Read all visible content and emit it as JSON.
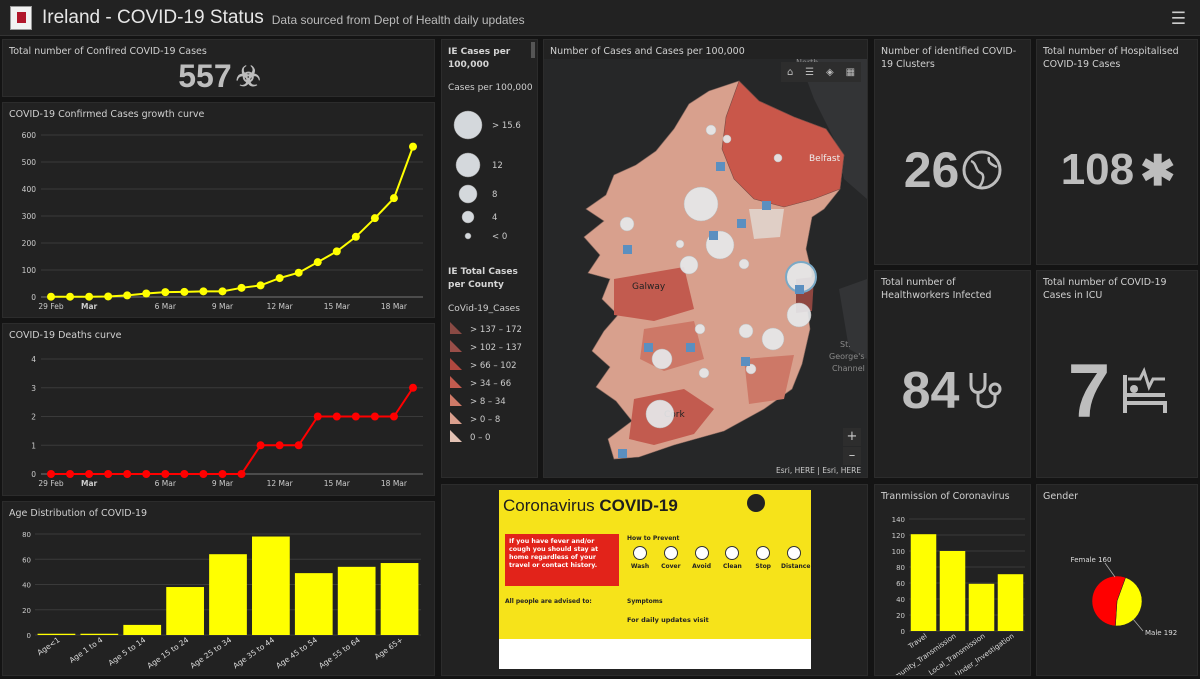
{
  "header": {
    "title": "Ireland - COVID-19 Status",
    "subtitle": "Data sourced from Dept of Health daily updates",
    "menu_icon": "hamburger-menu-icon"
  },
  "confirmed": {
    "title": "Total number of Confired COVID-19 Cases",
    "value": "557",
    "icon": "biohazard-icon"
  },
  "clusters": {
    "title": "Number of  identified COVID-19 Clusters",
    "value": "26",
    "icon": "globe-icon"
  },
  "hospitalised": {
    "title": "Total number of Hospitalised COVID-19 Cases",
    "value": "108",
    "icon": "asterisk-icon"
  },
  "healthworkers": {
    "title": "Total number of Healthworkers Infected",
    "value": "84",
    "icon": "stethoscope-icon"
  },
  "icu": {
    "title": "Total number of  COVID-19 Cases in ICU",
    "value": "7",
    "icon": "icu-bed-icon"
  },
  "legend": {
    "title": "IE Cases per 100,000",
    "sub": "Cases per 100,000",
    "circles": [
      "> 15.6",
      "12",
      "8",
      "4",
      "< 0"
    ],
    "county_title": "IE Total Cases per County",
    "layer": "CoVid-19_Cases",
    "classes": [
      "> 137 – 172",
      "> 102 – 137",
      "> 66 – 102",
      "> 34 – 66",
      "> 8 – 34",
      "> 0 – 8",
      "0 – 0"
    ],
    "class_colors": [
      "#8a4a44",
      "#9a4e48",
      "#b0483f",
      "#c25b4f",
      "#cf7a68",
      "#dba08e",
      "#e3c2b4"
    ]
  },
  "map": {
    "title": "Number of Cases and Cases per 100,000",
    "labels": {
      "belfast": "Belfast",
      "galway": "Galway",
      "cork": "Cork",
      "sea1": "St.",
      "sea2": "George's",
      "sea3": "Channel",
      "north": "North"
    },
    "attribution": "Esri, HERE | Esri, HERE",
    "zoom_in": "+",
    "zoom_out": "–"
  },
  "poster": {
    "heading_a": "Coronavirus ",
    "heading_b": "COVID-19",
    "red_text": "If you have fever and/or cough you should stay at home regardless of your travel or contact history.",
    "how": "How to Prevent",
    "steps": [
      "Wash",
      "Cover",
      "Avoid",
      "Clean",
      "Stop",
      "Distance"
    ],
    "symptoms": "Symptoms",
    "advised": "All people are advised to:",
    "daily": "For daily updates visit"
  },
  "growth": {
    "title": "COVID-19 Confirmed Cases growth curve",
    "xticks": [
      "29 Feb",
      "Mar",
      "6 Mar",
      "9 Mar",
      "12 Mar",
      "15 Mar",
      "18 Mar"
    ],
    "yticks": [
      "0",
      "100",
      "200",
      "300",
      "400",
      "500",
      "600"
    ]
  },
  "deaths": {
    "title": "COVID-19 Deaths curve",
    "xticks": [
      "29 Feb",
      "Mar",
      "6 Mar",
      "9 Mar",
      "12 Mar",
      "15 Mar",
      "18 Mar"
    ],
    "yticks": [
      "0",
      "1",
      "2",
      "3",
      "4"
    ]
  },
  "age": {
    "title": "Age Distribution of COVID-19",
    "yticks": [
      "0",
      "20",
      "40",
      "60",
      "80"
    ]
  },
  "trans": {
    "title": "Tranmission of Coronavirus",
    "yticks": [
      "0",
      "20",
      "40",
      "60",
      "80",
      "100",
      "120",
      "140"
    ]
  },
  "gender": {
    "title": "Gender",
    "female": "Female 160",
    "male": "Male 192"
  },
  "chart_data": [
    {
      "type": "line",
      "title": "COVID-19 Confirmed Cases growth curve",
      "x": [
        "29 Feb",
        "1 Mar",
        "2 Mar",
        "3 Mar",
        "4 Mar",
        "5 Mar",
        "6 Mar",
        "7 Mar",
        "8 Mar",
        "9 Mar",
        "10 Mar",
        "11 Mar",
        "12 Mar",
        "13 Mar",
        "14 Mar",
        "15 Mar",
        "16 Mar",
        "17 Mar",
        "18 Mar",
        "19 Mar"
      ],
      "values": [
        1,
        1,
        1,
        2,
        6,
        13,
        18,
        19,
        21,
        21,
        34,
        43,
        70,
        90,
        129,
        169,
        223,
        292,
        366,
        557
      ],
      "ylim": [
        0,
        600
      ],
      "color": "#ffff00"
    },
    {
      "type": "line",
      "title": "COVID-19 Deaths curve",
      "x": [
        "29 Feb",
        "1 Mar",
        "2 Mar",
        "3 Mar",
        "4 Mar",
        "5 Mar",
        "6 Mar",
        "7 Mar",
        "8 Mar",
        "9 Mar",
        "10 Mar",
        "11 Mar",
        "12 Mar",
        "13 Mar",
        "14 Mar",
        "15 Mar",
        "16 Mar",
        "17 Mar",
        "18 Mar",
        "19 Mar"
      ],
      "values": [
        0,
        0,
        0,
        0,
        0,
        0,
        0,
        0,
        0,
        0,
        0,
        1,
        1,
        1,
        2,
        2,
        2,
        2,
        2,
        3
      ],
      "ylim": [
        0,
        4
      ],
      "color": "#ff0000"
    },
    {
      "type": "bar",
      "title": "Age Distribution of COVID-19",
      "categories": [
        "Age<1",
        "Age 1 to 4",
        "Age 5 to 14",
        "Age 15 to 24",
        "Age 25 to 34",
        "Age 35 to 44",
        "Age 45 to 54",
        "Age 55 to 64",
        "Age 65+"
      ],
      "values": [
        1,
        1,
        8,
        38,
        64,
        78,
        49,
        54,
        57
      ],
      "ylim": [
        0,
        80
      ],
      "color": "#ffff00"
    },
    {
      "type": "bar",
      "title": "Tranmission of Coronavirus",
      "categories": [
        "Travel",
        "Community_Transmission",
        "Local_Transmission",
        "Under_Investigation"
      ],
      "values": [
        121,
        100,
        59,
        71
      ],
      "ylim": [
        0,
        140
      ],
      "color": "#ffff00"
    },
    {
      "type": "pie",
      "title": "Gender",
      "categories": [
        "Female",
        "Male"
      ],
      "values": [
        160,
        192
      ],
      "colors": [
        "#ffff00",
        "#ff0000"
      ]
    }
  ]
}
